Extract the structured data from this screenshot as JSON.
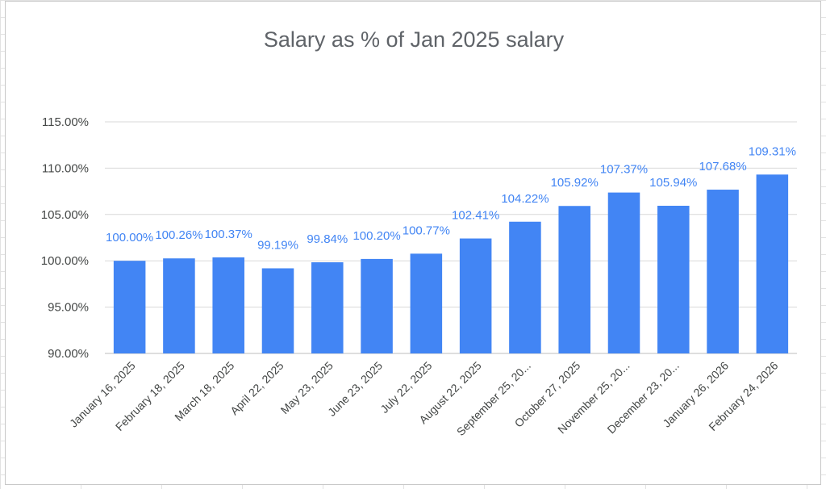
{
  "chart_data": {
    "type": "bar",
    "title": "Salary as % of Jan 2025 salary",
    "xlabel": "",
    "ylabel": "",
    "ylim": [
      90,
      115
    ],
    "yticks": [
      90,
      95,
      100,
      105,
      110,
      115
    ],
    "ytick_labels": [
      "90.00%",
      "95.00%",
      "100.00%",
      "105.00%",
      "110.00%",
      "115.00%"
    ],
    "grid": true,
    "legend": "none",
    "bar_color": "#4285f4",
    "categories": [
      "January 16, 2025",
      "February 18, 2025",
      "March 18, 2025",
      "April 22, 2025",
      "May 23, 2025",
      "June 23, 2025",
      "July 22, 2025",
      "August 22, 2025",
      "September 25, 20...",
      "October 27, 2025",
      "November 25, 20...",
      "December 23, 20...",
      "January 26, 2026",
      "February 24, 2026"
    ],
    "values": [
      100.0,
      100.26,
      100.37,
      99.19,
      99.84,
      100.2,
      100.77,
      102.41,
      104.22,
      105.92,
      107.37,
      105.94,
      107.68,
      109.31
    ],
    "value_labels": [
      "100.00%",
      "100.26%",
      "100.37%",
      "99.19%",
      "99.84%",
      "100.20%",
      "100.77%",
      "102.41%",
      "104.22%",
      "105.92%",
      "107.37%",
      "105.94%",
      "107.68%",
      "109.31%"
    ]
  }
}
